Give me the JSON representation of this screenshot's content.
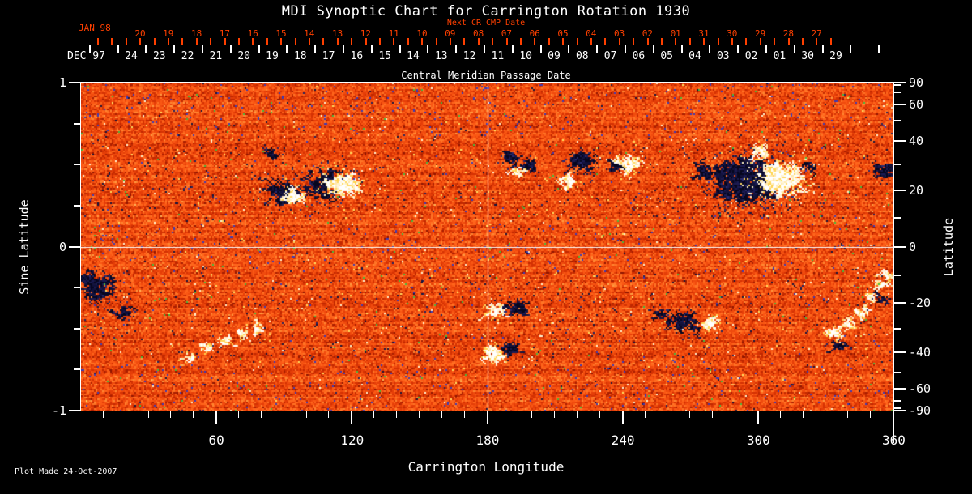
{
  "title": "MDI Synoptic Chart for Carrington Rotation 1930",
  "footer": {
    "plot_made": "Plot Made 24-Oct-2007"
  },
  "colors": {
    "background": "#000000",
    "axis": "#ffffff",
    "secondary_axis_red": "#ff4000",
    "quiet_sun_orange": "#f04b0e",
    "negative_polarity": "#0a0a28",
    "positive_polarity": "#ffffff"
  },
  "axes": {
    "top_secondary": {
      "label": "Next CR CMP Date",
      "month_label": "JAN 98",
      "tick_labels": [
        "20",
        "19",
        "18",
        "17",
        "16",
        "15",
        "14",
        "13",
        "12",
        "11",
        "10",
        "09",
        "08",
        "07",
        "06",
        "05",
        "04",
        "03",
        "02",
        "01",
        "31",
        "30",
        "29",
        "28",
        "27"
      ]
    },
    "top_primary": {
      "label": "Central Meridian Passage Date",
      "month_label": "DEC 97",
      "tick_labels": [
        "24",
        "23",
        "22",
        "21",
        "20",
        "19",
        "18",
        "17",
        "16",
        "15",
        "14",
        "13",
        "12",
        "11",
        "10",
        "09",
        "08",
        "07",
        "06",
        "05",
        "04",
        "03",
        "02",
        "01",
        "30",
        "29"
      ]
    },
    "bottom": {
      "label": "Carrington Longitude",
      "tick_labels": [
        "60",
        "120",
        "180",
        "240",
        "300",
        "360"
      ]
    },
    "left": {
      "label": "Sine Latitude",
      "tick_labels": [
        "1",
        "0",
        "-1"
      ]
    },
    "right": {
      "label": "Latitude",
      "tick_labels": [
        "90",
        "60",
        "40",
        "20",
        "0",
        "-20",
        "-40",
        "-60",
        "-90"
      ]
    }
  },
  "chart_data": {
    "type": "heatmap",
    "title": "MDI Synoptic Chart for Carrington Rotation 1930",
    "xlabel": "Carrington Longitude",
    "ylabel_left": "Sine Latitude",
    "ylabel_right": "Latitude",
    "xlim": [
      0,
      360
    ],
    "ylim_sine_latitude": [
      -1,
      1
    ],
    "x_major_ticks": [
      60,
      120,
      180,
      240,
      300,
      360
    ],
    "x_minor_step_deg": 10,
    "left_axis_ticks": [
      1,
      0,
      -1
    ],
    "left_axis_minor_step": 0.25,
    "right_axis_tick_labels": [
      90,
      60,
      40,
      20,
      0,
      -20,
      -40,
      -60,
      -90
    ],
    "right_axis_tick_step_deg": 10,
    "colormap": "orange-red speckle = quiet Sun; dark navy/black = negative magnetic polarity; white/yellow = positive magnetic polarity",
    "crosshair": {
      "longitude": 180,
      "sine_latitude": 0
    },
    "cmp_date_axis": {
      "month_label": "DEC 97",
      "dates": [
        "24",
        "23",
        "22",
        "21",
        "20",
        "19",
        "18",
        "17",
        "16",
        "15",
        "14",
        "13",
        "12",
        "11",
        "10",
        "09",
        "08",
        "07",
        "06",
        "05",
        "04",
        "03",
        "02",
        "01",
        "30",
        "29"
      ]
    },
    "next_cr_cmp_date_axis": {
      "month_label": "JAN 98",
      "dates": [
        "20",
        "19",
        "18",
        "17",
        "16",
        "15",
        "14",
        "13",
        "12",
        "11",
        "10",
        "09",
        "08",
        "07",
        "06",
        "05",
        "04",
        "03",
        "02",
        "01",
        "31",
        "30",
        "29",
        "28",
        "27"
      ]
    },
    "active_regions": [
      {
        "lon": 84,
        "sine_lat": 0.57,
        "polarity": "negative",
        "radius_deg": 2.2,
        "density": 0.9
      },
      {
        "lon": 90,
        "sine_lat": 0.32,
        "polarity": "negative",
        "radius_deg": 5.4,
        "density": 1.0
      },
      {
        "lon": 95,
        "sine_lat": 0.31,
        "polarity": "positive",
        "radius_deg": 3.6,
        "density": 1.0
      },
      {
        "lon": 108,
        "sine_lat": 0.38,
        "polarity": "negative",
        "radius_deg": 7.9,
        "density": 0.55
      },
      {
        "lon": 117,
        "sine_lat": 0.38,
        "polarity": "positive",
        "radius_deg": 6.1,
        "density": 0.95
      },
      {
        "lon": 190,
        "sine_lat": 0.54,
        "polarity": "negative",
        "radius_deg": 3.2,
        "density": 0.9
      },
      {
        "lon": 198,
        "sine_lat": 0.49,
        "polarity": "negative",
        "radius_deg": 2.9,
        "density": 0.85
      },
      {
        "lon": 194,
        "sine_lat": 0.45,
        "polarity": "positive",
        "radius_deg": 1.4,
        "density": 0.8
      },
      {
        "lon": 222,
        "sine_lat": 0.52,
        "polarity": "negative",
        "radius_deg": 4.7,
        "density": 1.0
      },
      {
        "lon": 216,
        "sine_lat": 0.39,
        "polarity": "positive",
        "radius_deg": 2.9,
        "density": 0.9
      },
      {
        "lon": 243,
        "sine_lat": 0.5,
        "polarity": "positive",
        "radius_deg": 4.3,
        "density": 0.95
      },
      {
        "lon": 236,
        "sine_lat": 0.48,
        "polarity": "negative",
        "radius_deg": 1.8,
        "density": 0.7
      },
      {
        "lon": 294,
        "sine_lat": 0.4,
        "polarity": "negative",
        "radius_deg": 12.2,
        "density": 1.0
      },
      {
        "lon": 310,
        "sine_lat": 0.41,
        "polarity": "positive",
        "radius_deg": 8.6,
        "density": 1.0
      },
      {
        "lon": 277,
        "sine_lat": 0.45,
        "polarity": "negative",
        "radius_deg": 4.3,
        "density": 0.5
      },
      {
        "lon": 323,
        "sine_lat": 0.48,
        "polarity": "negative",
        "radius_deg": 2.9,
        "density": 0.5
      },
      {
        "lon": 300,
        "sine_lat": 0.57,
        "polarity": "positive",
        "radius_deg": 5.0,
        "density": 0.4
      },
      {
        "lon": 356,
        "sine_lat": 0.46,
        "polarity": "negative",
        "radius_deg": 3.9,
        "density": 0.9
      },
      {
        "lon": 184,
        "sine_lat": -0.39,
        "polarity": "positive",
        "radius_deg": 3.2,
        "density": 0.95
      },
      {
        "lon": 193,
        "sine_lat": -0.38,
        "polarity": "negative",
        "radius_deg": 3.6,
        "density": 0.95
      },
      {
        "lon": 183,
        "sine_lat": -0.66,
        "polarity": "positive",
        "radius_deg": 3.6,
        "density": 1.0
      },
      {
        "lon": 190,
        "sine_lat": -0.63,
        "polarity": "negative",
        "radius_deg": 3.2,
        "density": 0.9
      },
      {
        "lon": 267,
        "sine_lat": -0.46,
        "polarity": "negative",
        "radius_deg": 5.8,
        "density": 0.6
      },
      {
        "lon": 279,
        "sine_lat": -0.47,
        "polarity": "positive",
        "radius_deg": 3.2,
        "density": 0.9
      },
      {
        "lon": 257,
        "sine_lat": -0.42,
        "polarity": "negative",
        "radius_deg": 2.9,
        "density": 0.4
      },
      {
        "lon": 334,
        "sine_lat": -0.53,
        "polarity": "positive",
        "radius_deg": 2.5,
        "density": 1.0
      },
      {
        "lon": 340,
        "sine_lat": -0.47,
        "polarity": "positive",
        "radius_deg": 2.5,
        "density": 1.0
      },
      {
        "lon": 346,
        "sine_lat": -0.4,
        "polarity": "positive",
        "radius_deg": 2.2,
        "density": 1.0
      },
      {
        "lon": 350,
        "sine_lat": -0.31,
        "polarity": "positive",
        "radius_deg": 2.2,
        "density": 0.9
      },
      {
        "lon": 354,
        "sine_lat": -0.24,
        "polarity": "positive",
        "radius_deg": 2.0,
        "density": 0.9
      },
      {
        "lon": 357,
        "sine_lat": -0.18,
        "polarity": "positive",
        "radius_deg": 1.8,
        "density": 0.85
      },
      {
        "lon": 336,
        "sine_lat": -0.6,
        "polarity": "negative",
        "radius_deg": 2.5,
        "density": 0.5
      },
      {
        "lon": 355,
        "sine_lat": -0.32,
        "polarity": "negative",
        "radius_deg": 2.2,
        "density": 0.45
      },
      {
        "lon": 9,
        "sine_lat": -0.26,
        "polarity": "negative",
        "radius_deg": 7.2,
        "density": 0.5
      },
      {
        "lon": 4,
        "sine_lat": -0.19,
        "polarity": "negative",
        "radius_deg": 3.6,
        "density": 0.5
      },
      {
        "lon": 19,
        "sine_lat": -0.4,
        "polarity": "negative",
        "radius_deg": 4.3,
        "density": 0.45
      },
      {
        "lon": 56,
        "sine_lat": -0.62,
        "polarity": "positive",
        "radius_deg": 1.8,
        "density": 0.7
      },
      {
        "lon": 64,
        "sine_lat": -0.57,
        "polarity": "positive",
        "radius_deg": 1.8,
        "density": 0.7
      },
      {
        "lon": 71,
        "sine_lat": -0.53,
        "polarity": "positive",
        "radius_deg": 1.8,
        "density": 0.65
      },
      {
        "lon": 78,
        "sine_lat": -0.5,
        "polarity": "positive",
        "radius_deg": 1.6,
        "density": 0.6
      },
      {
        "lon": 49,
        "sine_lat": -0.68,
        "polarity": "positive",
        "radius_deg": 1.6,
        "density": 0.6
      }
    ]
  }
}
